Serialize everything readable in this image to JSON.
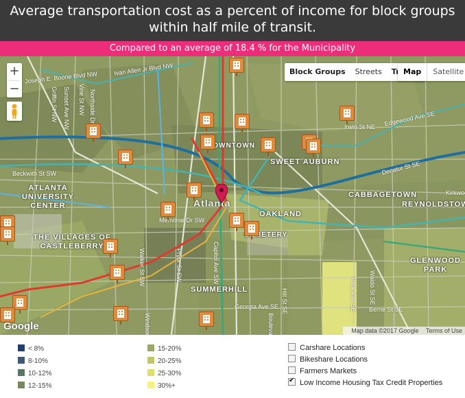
{
  "header": {
    "title_line1": "Average transportation cost as a percent of income for block groups",
    "title_line2": "within half mile of transit."
  },
  "subbar": {
    "text": "Compared to an average of 18.4 % for the Municipality"
  },
  "map": {
    "controls": {
      "zoom_in": "+",
      "zoom_out": "−",
      "layers": [
        "Block Groups",
        "Streets",
        "Transit"
      ],
      "map_types": [
        "Map",
        "Satellite"
      ]
    },
    "attribution": {
      "data": "Map data ©2017 Google",
      "terms": "Terms of Use",
      "logo": "Google"
    },
    "areas": [
      {
        "name": "ATLANTA UNIVERSITY CENTER"
      },
      {
        "name": "THE VILLAGES OF CASTLEBERRY"
      },
      {
        "name": "SWEET AUBURN"
      },
      {
        "name": "CABBAGETOWN"
      },
      {
        "name": "REYNOLDSTOWN"
      },
      {
        "name": "OAKLAND"
      },
      {
        "name": "CEMETERY"
      },
      {
        "name": "GLENWOOD PARK"
      },
      {
        "name": "SUMMERHILL"
      },
      {
        "name": "DOWNTOWN"
      },
      {
        "name": "Atlanta"
      }
    ],
    "streets": [
      "Beckwith St SW",
      "Memorial Dr SW",
      "Georgia Ave SE",
      "Northside Dr NW",
      "Walker St SW",
      "Windsor St SW",
      "Pryor St SW",
      "Capitol Ave SW",
      "Hill St SE",
      "Boulevard SE",
      "Park Ave SE",
      "Waldo St SE",
      "Berne St SE",
      "Kirkwood",
      "Irwin St NE",
      "Griffin St NW",
      "Vine St NW",
      "Sunset Ave NW",
      "Joseph E. Boone Blvd NW",
      "Ivan Allen Jr Blvd NW",
      "Edgewood Ave SE",
      "Decatur St SE"
    ],
    "marker_icon": "lihtc-building-icon",
    "pin_icon": "location-pin-icon",
    "colors": {
      "pin": "#d11a4f",
      "marker": "#e08a3c"
    }
  },
  "legend": {
    "ranges": [
      {
        "label": "< 8%",
        "color": "#1f3f6e"
      },
      {
        "label": "8-10%",
        "color": "#3c5a78"
      },
      {
        "label": "10-12%",
        "color": "#587766"
      },
      {
        "label": "12-15%",
        "color": "#77895a"
      },
      {
        "label": "15-20%",
        "color": "#9aa865"
      },
      {
        "label": "20-25%",
        "color": "#c1c768"
      },
      {
        "label": "25-30%",
        "color": "#dde06b"
      },
      {
        "label": "30%+",
        "color": "#f4f47a"
      }
    ],
    "overlays": [
      {
        "label": "Carshare Locations",
        "checked": false
      },
      {
        "label": "Bikeshare Locations",
        "checked": false
      },
      {
        "label": "Farmers Markets",
        "checked": false
      },
      {
        "label": "Low Income Housing Tax Credit Properties",
        "checked": true
      }
    ]
  }
}
